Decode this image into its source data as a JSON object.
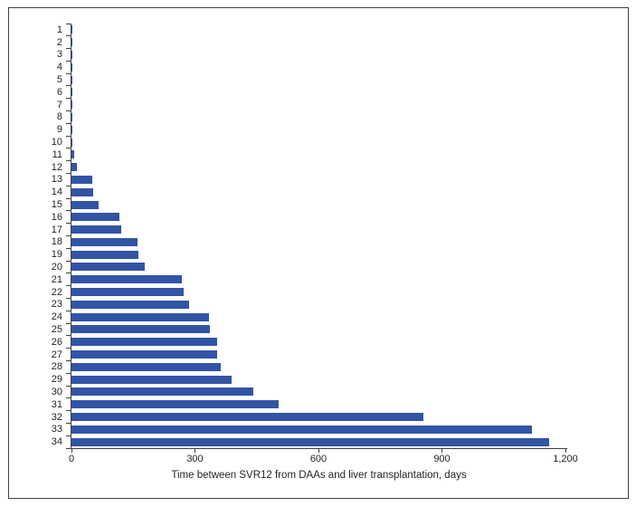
{
  "chart_data": {
    "type": "bar",
    "orientation": "horizontal",
    "title": "",
    "xlabel": "Time between SVR12 from DAAs and liver transplantation, days",
    "ylabel": "",
    "categories": [
      "1",
      "2",
      "3",
      "4",
      "5",
      "6",
      "7",
      "8",
      "9",
      "10",
      "11",
      "12",
      "13",
      "14",
      "15",
      "16",
      "17",
      "18",
      "19",
      "20",
      "21",
      "22",
      "23",
      "24",
      "25",
      "26",
      "27",
      "28",
      "29",
      "30",
      "31",
      "32",
      "33",
      "34"
    ],
    "values": [
      2,
      2,
      2,
      2,
      2,
      2,
      2,
      2,
      2,
      2,
      7,
      13,
      50,
      53,
      66,
      117,
      121,
      160,
      162,
      178,
      268,
      272,
      286,
      335,
      336,
      354,
      354,
      363,
      389,
      441,
      503,
      855,
      1119,
      1161
    ],
    "x_ticks": [
      0,
      300,
      600,
      900,
      1200
    ],
    "x_tick_labels": [
      "0",
      "300",
      "600",
      "900",
      "1,200"
    ],
    "xlim": [
      0,
      1200
    ],
    "grid": false,
    "legend_position": "none",
    "bar_color": "#3254A5",
    "axis_color": "#404040",
    "text_color": "#231F20",
    "frame_color": "#3F3F41"
  }
}
